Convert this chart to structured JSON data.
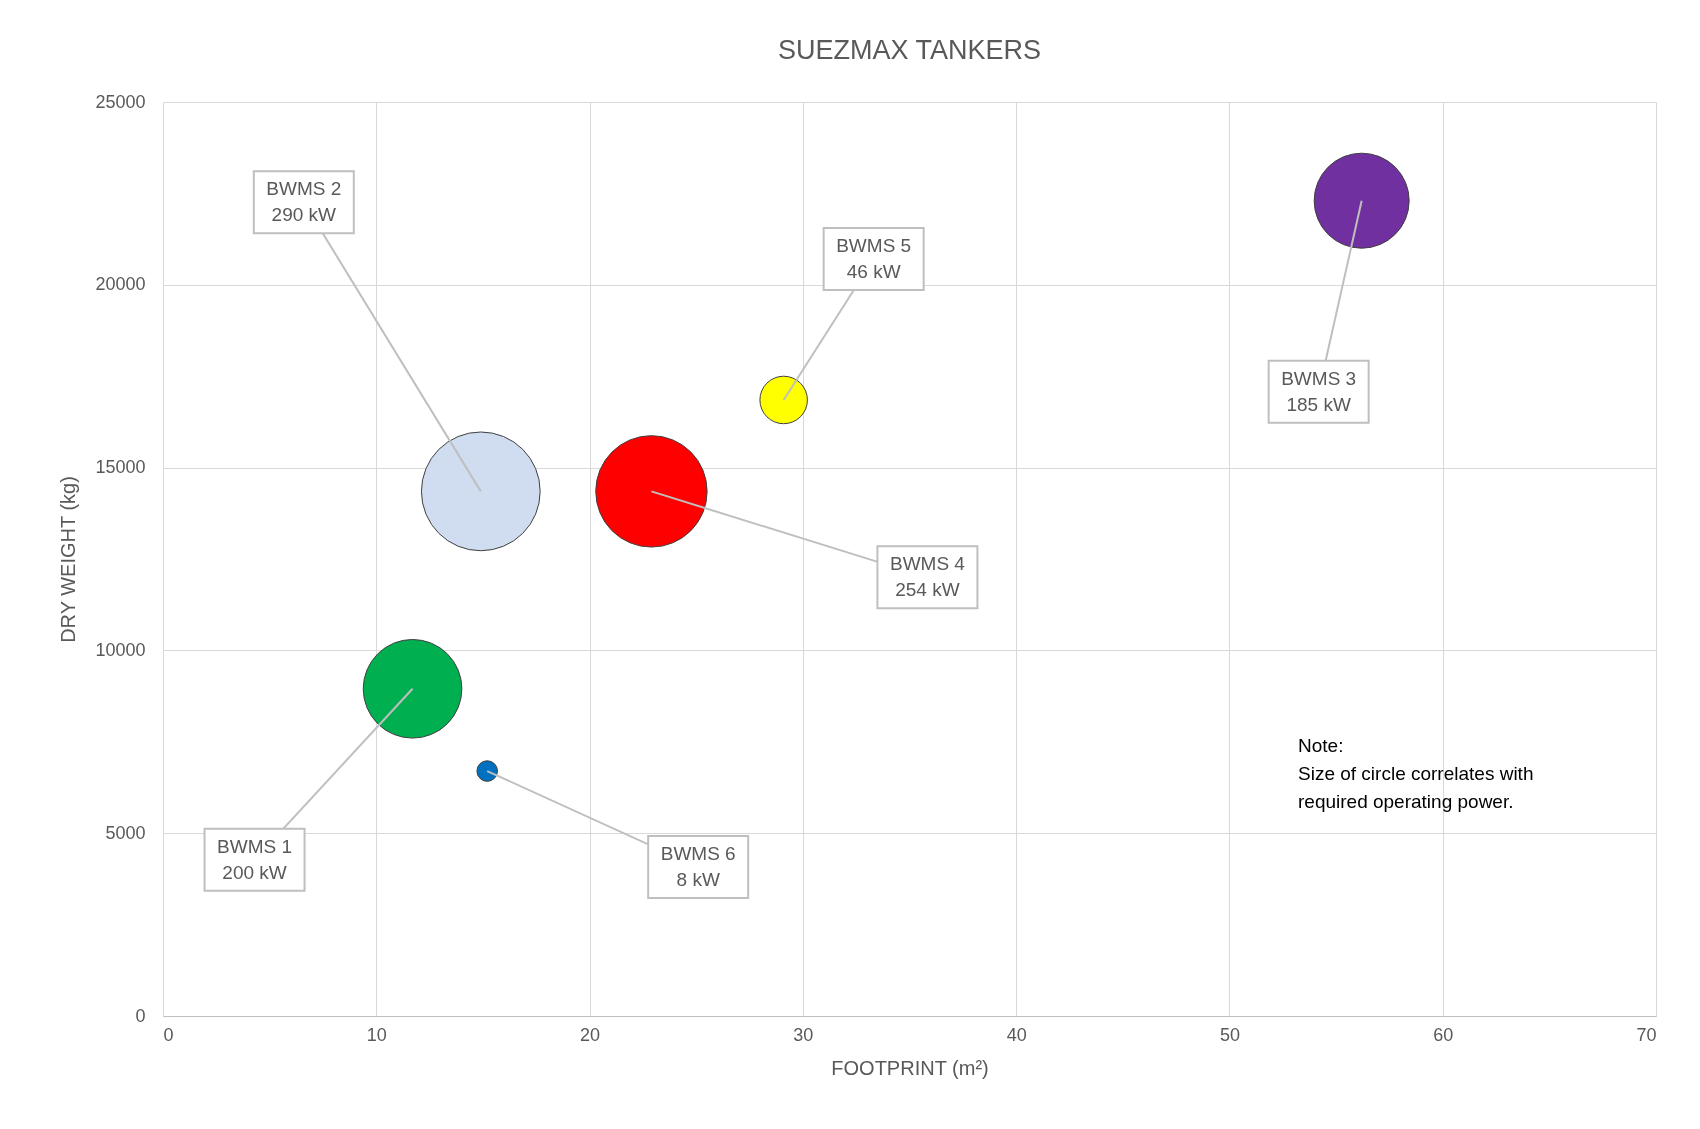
{
  "chart_data": {
    "type": "bubble",
    "title": "SUEZMAX TANKERS",
    "xlabel": "FOOTPRINT (m²)",
    "ylabel": "DRY WEIGHT (kg)",
    "x": [
      11.7,
      14.9,
      56.2,
      22.9,
      29.1,
      15.2
    ],
    "values": [
      8950,
      14350,
      22300,
      14350,
      16850,
      6700
    ],
    "sizes": [
      0.69,
      1,
      0.64,
      0.88,
      0.16,
      0.03
    ],
    "colors": [
      "#00b050",
      "#d0dcf0",
      "#7030a0",
      "#ff0000",
      "#ffff00",
      "#0070c0"
    ],
    "xlim": [
      0,
      70
    ],
    "xticks": [
      0,
      10,
      20,
      30,
      40,
      50,
      60,
      70
    ],
    "ylim": [
      0,
      25000
    ],
    "yticks": [
      0,
      5000,
      10000,
      15000,
      20000,
      25000
    ],
    "grid": true,
    "annotations": [
      {
        "text": "BWMS 1\n200 kW",
        "x": 11.7,
        "y": 8950
      },
      {
        "text": "BWMS 2\n290 kW",
        "x": 14.9,
        "y": 14350
      },
      {
        "text": "BWMS 3\n185 kW",
        "x": 56.2,
        "y": 22300
      },
      {
        "text": "BWMS 4\n254 kW",
        "x": 22.9,
        "y": 14350
      },
      {
        "text": "BWMS 5\n46 kW",
        "x": 29.1,
        "y": 16850
      },
      {
        "text": "BWMS 6\n8 kW",
        "x": 15.2,
        "y": 6700
      },
      "Note:\nSize of circle correlates with\nrequired operating power."
    ]
  }
}
